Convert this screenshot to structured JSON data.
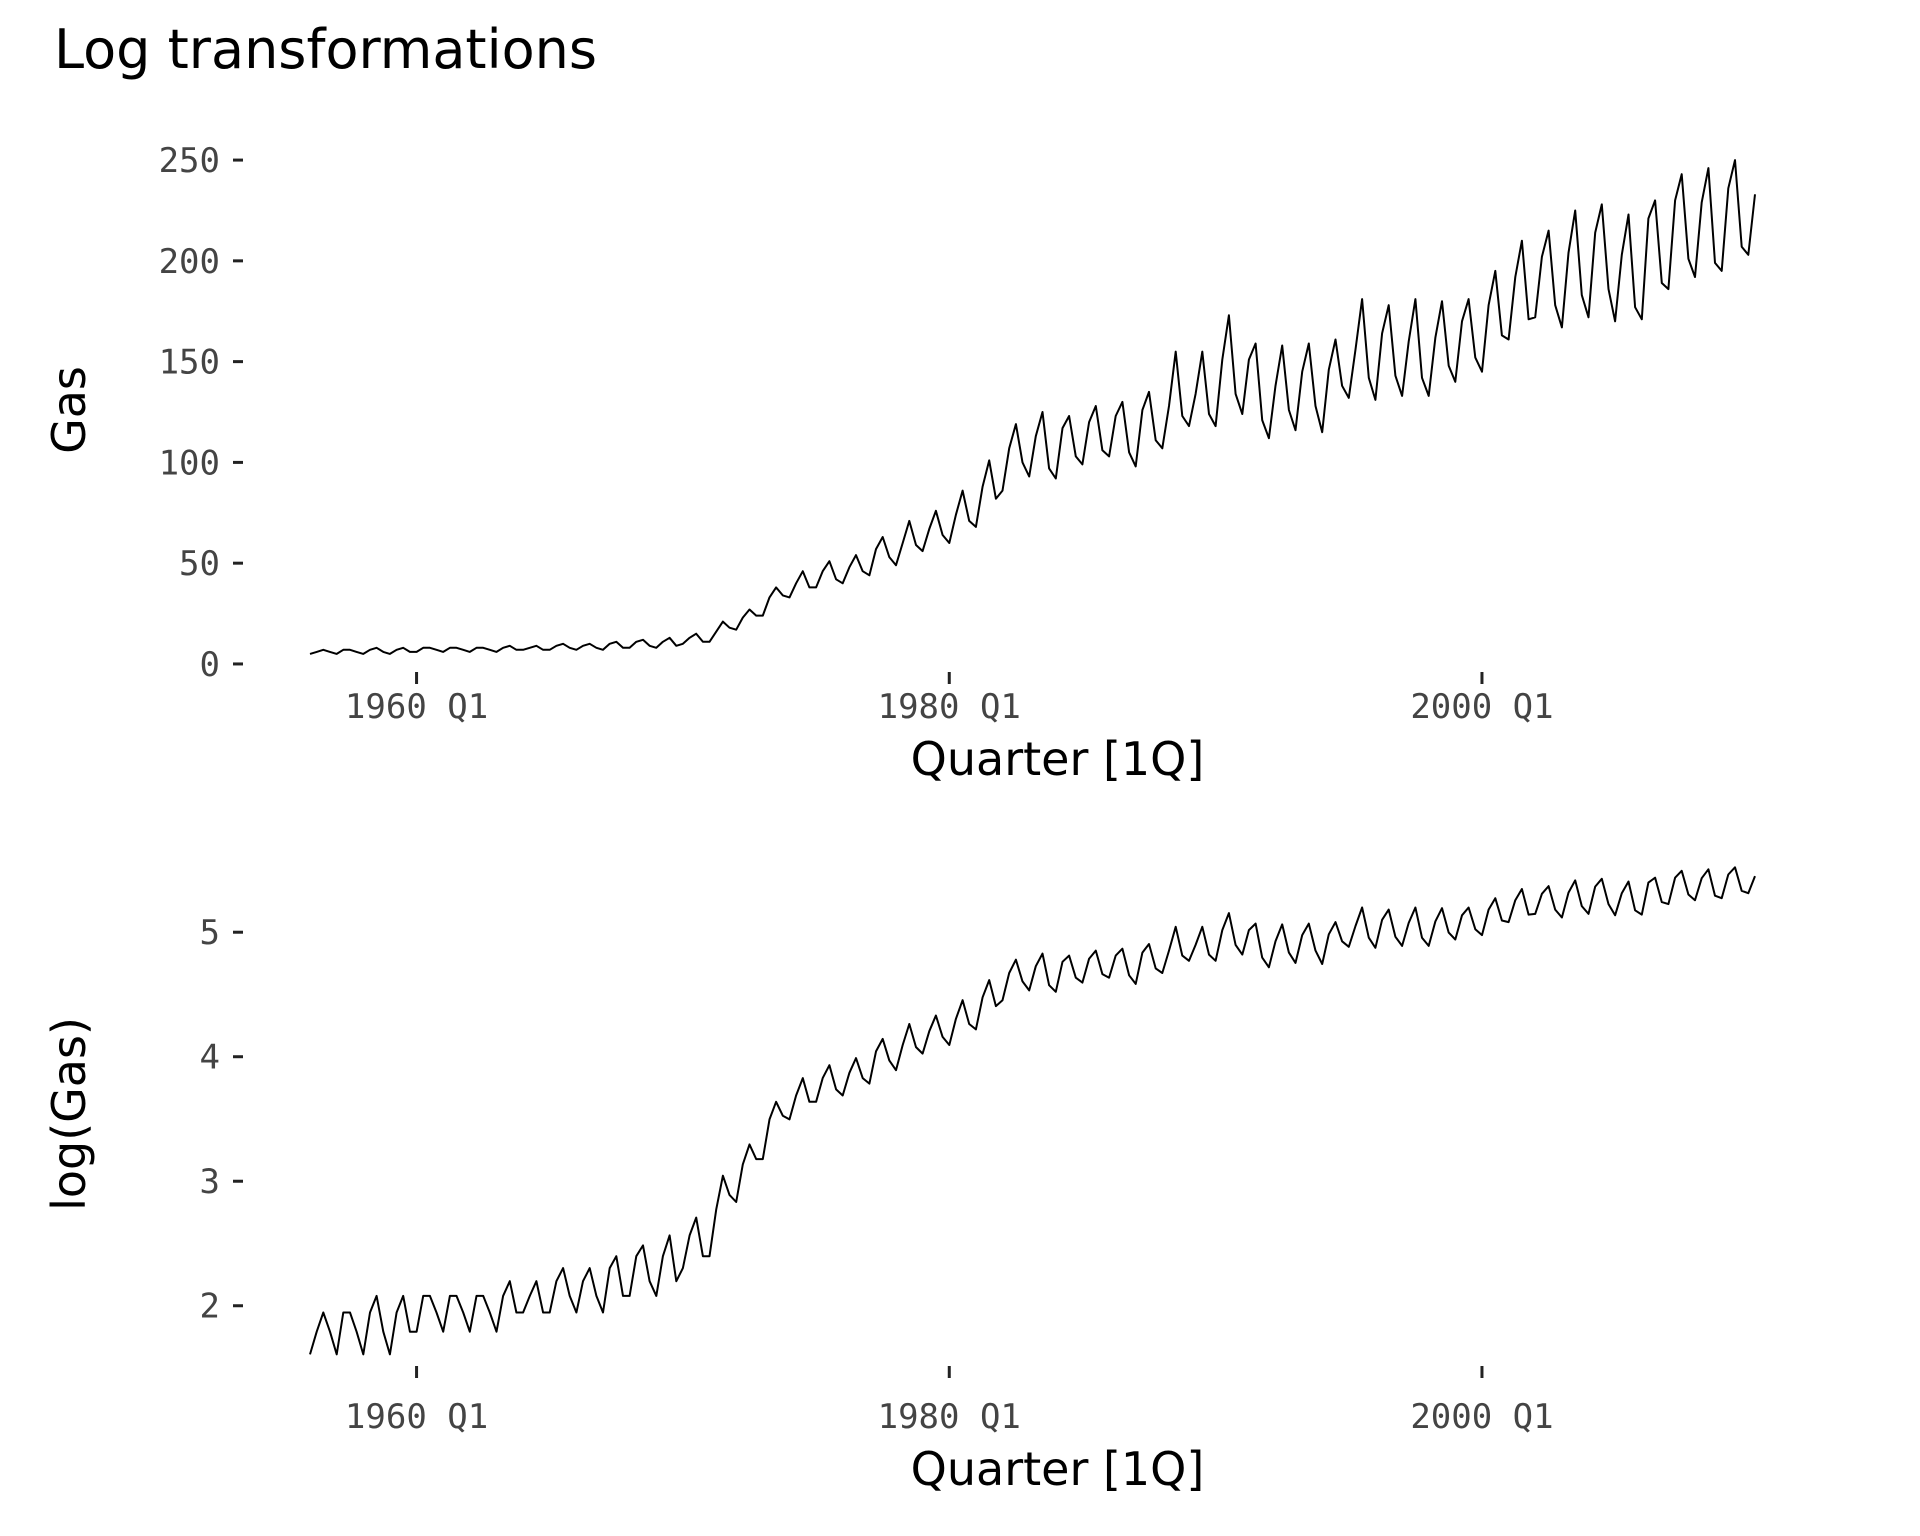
{
  "title": "Log transformations",
  "chart_data": [
    {
      "type": "line",
      "ylabel": "Gas",
      "xlabel": "Quarter [1Q]",
      "ylim": [
        -3,
        255
      ],
      "yticks": [
        0,
        50,
        100,
        150,
        200,
        250
      ],
      "xticks": [
        "1960 Q1",
        "1980 Q1",
        "2000 Q1"
      ],
      "grid": false,
      "series": [
        {
          "x_start": "1956 Q1",
          "x_end": "2010 Q2",
          "values": [
            5,
            6,
            7,
            6,
            5,
            7,
            7,
            6,
            5,
            7,
            8,
            6,
            5,
            7,
            8,
            6,
            6,
            8,
            8,
            7,
            6,
            8,
            8,
            7,
            6,
            8,
            8,
            7,
            6,
            8,
            9,
            7,
            7,
            8,
            9,
            7,
            7,
            9,
            10,
            8,
            7,
            9,
            10,
            8,
            7,
            10,
            11,
            8,
            8,
            11,
            12,
            9,
            8,
            11,
            13,
            9,
            10,
            13,
            15,
            11,
            11,
            16,
            21,
            18,
            17,
            23,
            27,
            24,
            24,
            33,
            38,
            34,
            33,
            40,
            46,
            38,
            38,
            46,
            51,
            42,
            40,
            48,
            54,
            46,
            44,
            57,
            63,
            53,
            49,
            60,
            71,
            59,
            56,
            67,
            76,
            64,
            60,
            74,
            86,
            71,
            68,
            88,
            101,
            82,
            86,
            107,
            119,
            100,
            93,
            113,
            125,
            97,
            92,
            117,
            123,
            103,
            99,
            120,
            128,
            106,
            103,
            123,
            130,
            105,
            98,
            126,
            135,
            111,
            107,
            128,
            155,
            123,
            118,
            134,
            155,
            124,
            118,
            151,
            173,
            134,
            124,
            151,
            159,
            121,
            112,
            138,
            158,
            126,
            116,
            145,
            159,
            128,
            115,
            146,
            161,
            138,
            132,
            156,
            181,
            142,
            131,
            164,
            178,
            143,
            133,
            160,
            181,
            142,
            133,
            162,
            180,
            148,
            140,
            170,
            181,
            152,
            145,
            178,
            195,
            163,
            161,
            192,
            210,
            171,
            172,
            202,
            215,
            178,
            167,
            204,
            225,
            183,
            172,
            214,
            228,
            186,
            170,
            203,
            223,
            177,
            171,
            221,
            230,
            189,
            186,
            230,
            243,
            201,
            192,
            229,
            246,
            199,
            195,
            236,
            250,
            207,
            203,
            233
          ]
        }
      ]
    },
    {
      "type": "line",
      "ylabel": "log(Gas)",
      "xlabel": "Quarter [1Q]",
      "ylim": [
        1.5,
        5.58
      ],
      "yticks": [
        2,
        3,
        4,
        5
      ],
      "xticks": [
        "1960 Q1",
        "1980 Q1",
        "2000 Q1"
      ],
      "grid": false,
      "series": [
        {
          "transform": "log",
          "source": 0
        }
      ]
    }
  ]
}
